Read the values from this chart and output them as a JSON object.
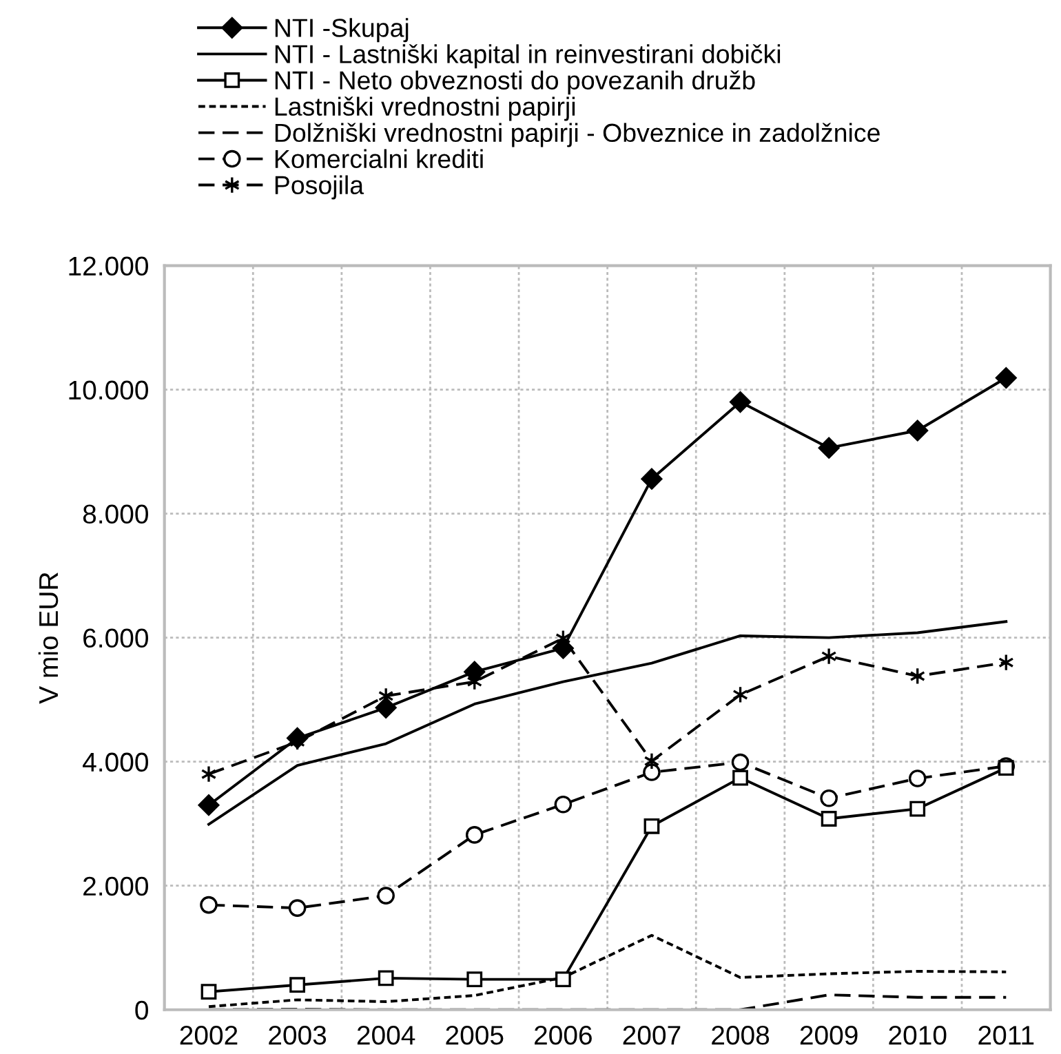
{
  "chart_data": {
    "type": "line",
    "ylabel": "V mio EUR",
    "categories": [
      "2002",
      "2003",
      "2004",
      "2005",
      "2006",
      "2007",
      "2008",
      "2009",
      "2010",
      "2011"
    ],
    "ylim": [
      0,
      12000
    ],
    "yticks": [
      {
        "value": 0,
        "label": "0"
      },
      {
        "value": 2000,
        "label": "2.000"
      },
      {
        "value": 4000,
        "label": "4.000"
      },
      {
        "value": 6000,
        "label": "6.000"
      },
      {
        "value": 8000,
        "label": "8.000"
      },
      {
        "value": 10000,
        "label": "10.000"
      },
      {
        "value": 12000,
        "label": "12.000"
      }
    ],
    "grid": true,
    "legend": "top left",
    "series": [
      {
        "name": "NTI -Skupaj",
        "color": "#000000",
        "marker": "diamond",
        "line_style": "solid",
        "values": [
          3300,
          4380,
          4870,
          5450,
          5830,
          8560,
          9800,
          9060,
          9340,
          10190
        ]
      },
      {
        "name": "NTI - Lastniški kapital in reinvestirani dobički",
        "color": "#000000",
        "marker": "none",
        "line_style": "solid",
        "values": [
          2990,
          3940,
          4290,
          4930,
          5290,
          5590,
          6030,
          6000,
          6080,
          6260
        ]
      },
      {
        "name": "NTI - Neto obveznosti do povezanih družb",
        "color": "#000000",
        "marker": "square",
        "line_style": "solid",
        "values": [
          290,
          400,
          510,
          490,
          490,
          2960,
          3740,
          3080,
          3240,
          3900
        ]
      },
      {
        "name": "Lastniški vrednostni papirji",
        "color": "#000000",
        "marker": "none",
        "line_style": "dotted",
        "values": [
          50,
          160,
          130,
          230,
          520,
          1200,
          520,
          580,
          620,
          610
        ]
      },
      {
        "name": "Dolžniški vrednostni papirji - Obveznice in zadolžnice",
        "color": "#000000",
        "marker": "none",
        "line_style": "dashed",
        "values": [
          0,
          10,
          0,
          0,
          0,
          0,
          0,
          240,
          200,
          200
        ]
      },
      {
        "name": "Komercialni krediti",
        "color": "#000000",
        "marker": "circle",
        "line_style": "dashed",
        "values": [
          1690,
          1640,
          1840,
          2820,
          3310,
          3830,
          3990,
          3410,
          3730,
          3930
        ]
      },
      {
        "name": "Posojila",
        "color": "#000000",
        "marker": "cross",
        "line_style": "dashed",
        "values": [
          3800,
          4320,
          5060,
          5290,
          5990,
          4010,
          5080,
          5700,
          5380,
          5600
        ]
      }
    ]
  }
}
